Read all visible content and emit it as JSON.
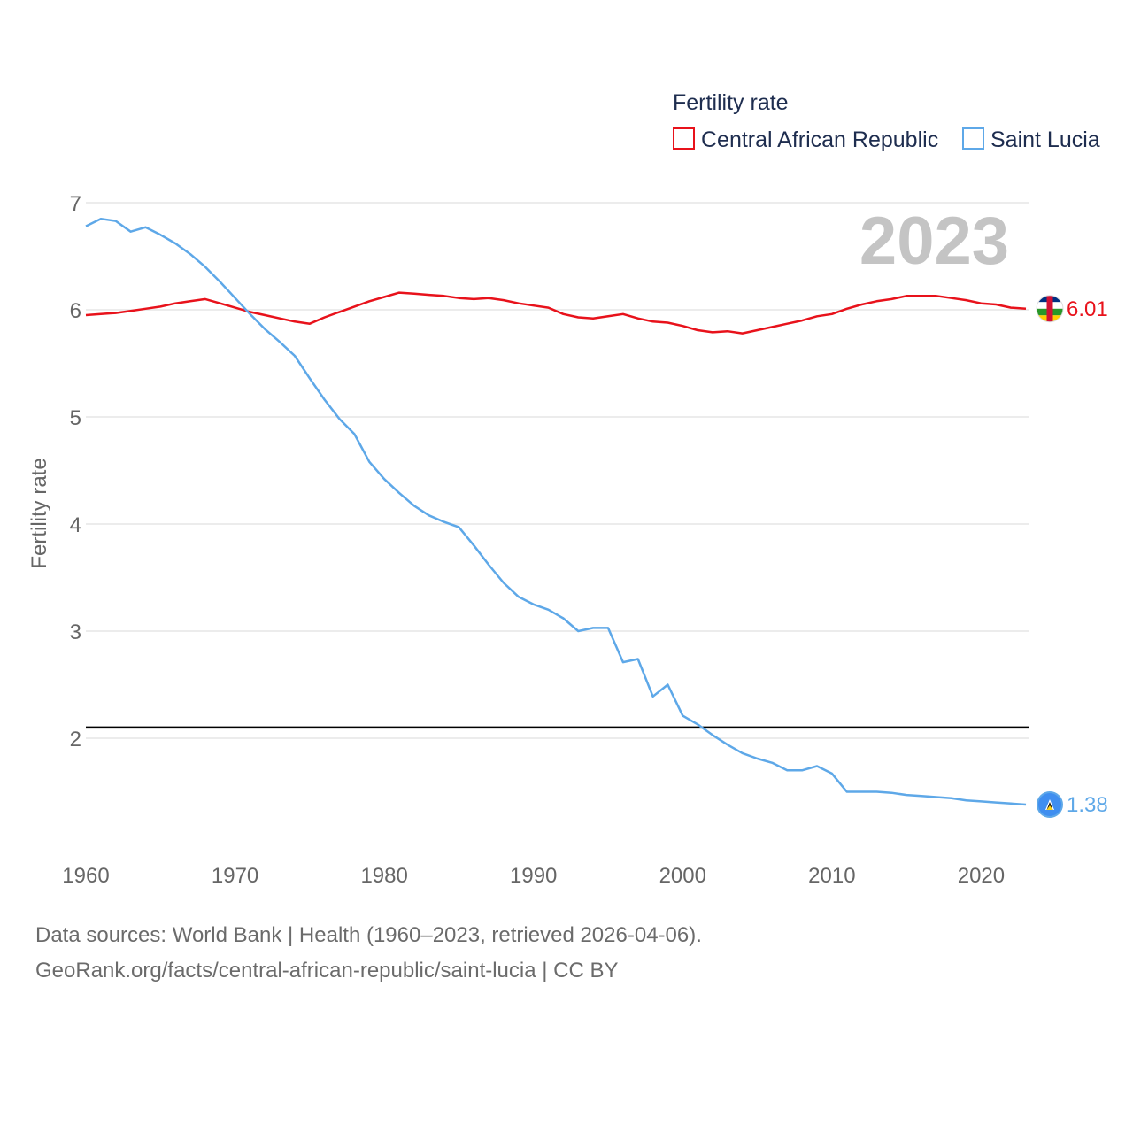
{
  "chart_data": {
    "type": "line",
    "current_year_label": "2023",
    "legend": {
      "title": "Fertility rate"
    },
    "ylabel": "Fertility rate",
    "xlabel": "",
    "xlim": [
      1960,
      2023
    ],
    "ylim": [
      1,
      7
    ],
    "yticks": [
      2,
      3,
      4,
      5,
      6,
      7
    ],
    "xticks": [
      1960,
      1970,
      1980,
      1990,
      2000,
      2010,
      2020
    ],
    "reference_line": {
      "value": 2.1,
      "color": "#000000"
    },
    "x": [
      1960,
      1961,
      1962,
      1963,
      1964,
      1965,
      1966,
      1967,
      1968,
      1969,
      1970,
      1971,
      1972,
      1973,
      1974,
      1975,
      1976,
      1977,
      1978,
      1979,
      1980,
      1981,
      1982,
      1983,
      1984,
      1985,
      1986,
      1987,
      1988,
      1989,
      1990,
      1991,
      1992,
      1993,
      1994,
      1995,
      1996,
      1997,
      1998,
      1999,
      2000,
      2001,
      2002,
      2003,
      2004,
      2005,
      2006,
      2007,
      2008,
      2009,
      2010,
      2011,
      2012,
      2013,
      2014,
      2015,
      2016,
      2017,
      2018,
      2019,
      2020,
      2021,
      2022,
      2023
    ],
    "series": [
      {
        "name": "Central African Republic",
        "color": "#e8121b",
        "end_label": "6.01",
        "values": [
          5.95,
          5.96,
          5.97,
          5.99,
          6.01,
          6.03,
          6.06,
          6.08,
          6.1,
          6.06,
          6.02,
          5.98,
          5.95,
          5.92,
          5.89,
          5.87,
          5.93,
          5.98,
          6.03,
          6.08,
          6.12,
          6.16,
          6.15,
          6.14,
          6.13,
          6.11,
          6.1,
          6.11,
          6.09,
          6.06,
          6.04,
          6.02,
          5.96,
          5.93,
          5.92,
          5.94,
          5.96,
          5.92,
          5.89,
          5.88,
          5.85,
          5.81,
          5.79,
          5.8,
          5.78,
          5.81,
          5.84,
          5.87,
          5.9,
          5.94,
          5.96,
          6.01,
          6.05,
          6.08,
          6.1,
          6.13,
          6.13,
          6.13,
          6.11,
          6.09,
          6.06,
          6.05,
          6.02,
          6.01
        ]
      },
      {
        "name": "Saint Lucia",
        "color": "#5ea8e8",
        "end_label": "1.38",
        "values": [
          6.78,
          6.85,
          6.83,
          6.73,
          6.77,
          6.7,
          6.62,
          6.52,
          6.4,
          6.26,
          6.11,
          5.96,
          5.82,
          5.7,
          5.57,
          5.36,
          5.16,
          4.98,
          4.84,
          4.58,
          4.42,
          4.29,
          4.17,
          4.08,
          4.02,
          3.97,
          3.8,
          3.62,
          3.45,
          3.32,
          3.25,
          3.2,
          3.12,
          3.0,
          3.03,
          3.03,
          2.71,
          2.74,
          2.39,
          2.5,
          2.21,
          2.13,
          2.03,
          1.94,
          1.86,
          1.81,
          1.77,
          1.7,
          1.7,
          1.74,
          1.67,
          1.5,
          1.5,
          1.5,
          1.49,
          1.47,
          1.46,
          1.45,
          1.44,
          1.42,
          1.41,
          1.4,
          1.39,
          1.38
        ]
      }
    ]
  },
  "footer": {
    "line1": "Data sources: World Bank | Health (1960–2023, retrieved 2026-04-06).",
    "line2": "GeoRank.org/facts/central-african-republic/saint-lucia | CC BY"
  },
  "flags": {
    "caf": "central-african-republic-flag-icon",
    "lca": "saint-lucia-flag-icon"
  }
}
